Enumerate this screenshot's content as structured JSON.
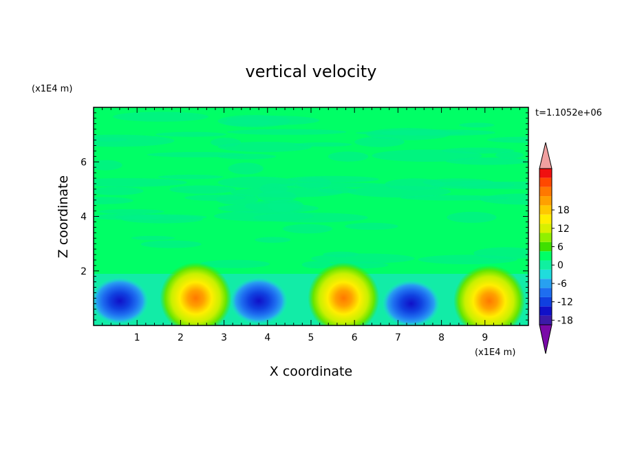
{
  "chart_data": {
    "type": "heatmap",
    "title": "vertical velocity",
    "xlabel": "X coordinate",
    "ylabel": "Z coordinate",
    "x_scale_label": "(x1E4 m)",
    "y_scale_label": "(x1E4 m)",
    "time_label": "t=1.1052e+06",
    "xlim": [
      0,
      10
    ],
    "ylim": [
      0,
      8
    ],
    "x_ticks": [
      1,
      2,
      3,
      4,
      5,
      6,
      7,
      8,
      9
    ],
    "y_ticks": [
      2,
      4,
      6
    ],
    "colorbar": {
      "tick_labels": [
        "18",
        "12",
        "6",
        "0",
        "-6",
        "-12",
        "-18"
      ],
      "tick_values": [
        18,
        12,
        6,
        0,
        -6,
        -12,
        -18
      ],
      "range": [
        -21,
        21
      ],
      "step": 3,
      "colors": [
        "#7a0aa8",
        "#3c1aa8",
        "#1010c8",
        "#1040e0",
        "#1e6ef0",
        "#28a0f0",
        "#20dcdc",
        "#10f0a0",
        "#00ff66",
        "#40e000",
        "#90f000",
        "#d8f000",
        "#ffee00",
        "#ffc800",
        "#ffa000",
        "#ff7800",
        "#ff4800",
        "#f01010",
        "#f0a0a0"
      ]
    },
    "updraft_cores": [
      {
        "x": 2.35,
        "z": 0.9,
        "peak": 15
      },
      {
        "x": 5.75,
        "z": 0.9,
        "peak": 15
      },
      {
        "x": 9.1,
        "z": 0.8,
        "peak": 13
      }
    ],
    "downdraft_cores": [
      {
        "x": 0.6,
        "z": 0.8,
        "peak": -12
      },
      {
        "x": 3.8,
        "z": 0.8,
        "peak": -13
      },
      {
        "x": 7.3,
        "z": 0.7,
        "peak": -12
      }
    ]
  }
}
